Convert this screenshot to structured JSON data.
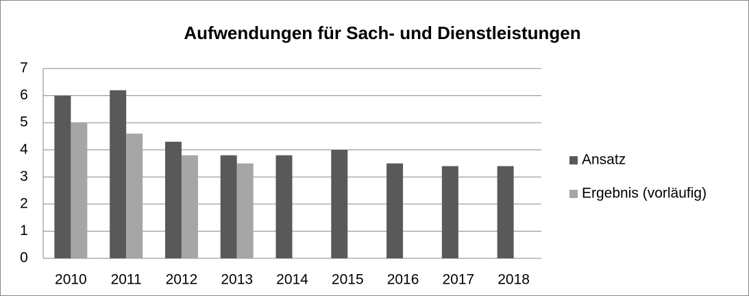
{
  "chart_data": {
    "type": "bar",
    "title": "Aufwendungen für Sach- und Dienstleistungen",
    "categories": [
      "2010",
      "2011",
      "2012",
      "2013",
      "2014",
      "2015",
      "2016",
      "2017",
      "2018"
    ],
    "series": [
      {
        "name": "Ansatz",
        "color": "#595959",
        "values": [
          6,
          6.2,
          4.3,
          3.8,
          3.8,
          4.0,
          3.5,
          3.4,
          3.4
        ]
      },
      {
        "name": "Ergebnis (vorläufig)",
        "color": "#a6a6a6",
        "values": [
          5.0,
          4.6,
          3.8,
          3.5,
          null,
          null,
          null,
          null,
          null
        ]
      }
    ],
    "ylim": [
      0,
      7
    ],
    "yticks": [
      0,
      1,
      2,
      3,
      4,
      5,
      6,
      7
    ],
    "grid": true,
    "legend": "right"
  }
}
